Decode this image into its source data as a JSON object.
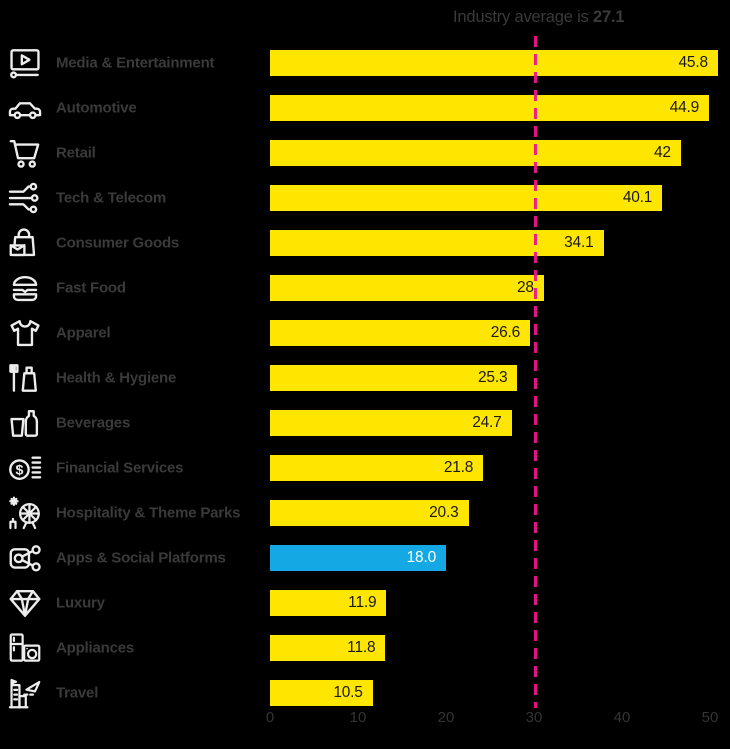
{
  "title": {
    "prefix": "Industry average is ",
    "average_value": "27.1"
  },
  "colors": {
    "background": "#000000",
    "bar": "#ffe600",
    "bar_highlight": "#14a8e4",
    "average_line": "#f0148c",
    "category_label_text": "#3a3a3a",
    "axis_text": "#343434",
    "value_text_on_bar": "#1a1a1a",
    "value_text_on_highlight": "#ffffff",
    "icon": "#ededed"
  },
  "chart_data": {
    "type": "bar",
    "orientation": "horizontal",
    "title": "Industry average is 27.1",
    "categories": [
      "Media & Entertainment",
      "Automotive",
      "Retail",
      "Tech & Telecom",
      "Consumer Goods",
      "Fast Food",
      "Apparel",
      "Health & Hygiene",
      "Beverages",
      "Financial Services",
      "Hospitality & Theme Parks",
      "Apps & Social Platforms",
      "Luxury",
      "Appliances",
      "Travel"
    ],
    "values": [
      45.8,
      44.9,
      42,
      40.1,
      34.1,
      28,
      26.6,
      25.3,
      24.7,
      21.8,
      20.3,
      18.0,
      11.9,
      11.8,
      10.5
    ],
    "value_labels": [
      "45.8",
      "44.9",
      "42",
      "40.1",
      "34.1",
      "28",
      "26.6",
      "25.3",
      "24.7",
      "21.8",
      "20.3",
      "18.0",
      "11.9",
      "11.8",
      "10.5"
    ],
    "highlight_index": 11,
    "highlight_category": "Apps & Social Platforms",
    "average_line": {
      "value": 27.1,
      "label": "Industry average is 27.1"
    },
    "x_ticks": [
      0,
      10,
      20,
      30,
      40,
      50
    ],
    "xlim": [
      0,
      50
    ],
    "grid": false,
    "legend": false,
    "icons": [
      "media-player-icon",
      "car-icon",
      "shopping-cart-icon",
      "network-nodes-icon",
      "shopping-bag-icon",
      "burger-icon",
      "tshirt-icon",
      "toothbrush-toothpaste-icon",
      "bottle-glass-icon",
      "dollar-coin-icon",
      "ferris-wheel-icon",
      "share-network-icon",
      "diamond-icon",
      "fridge-washer-icon",
      "building-plane-icon"
    ]
  }
}
